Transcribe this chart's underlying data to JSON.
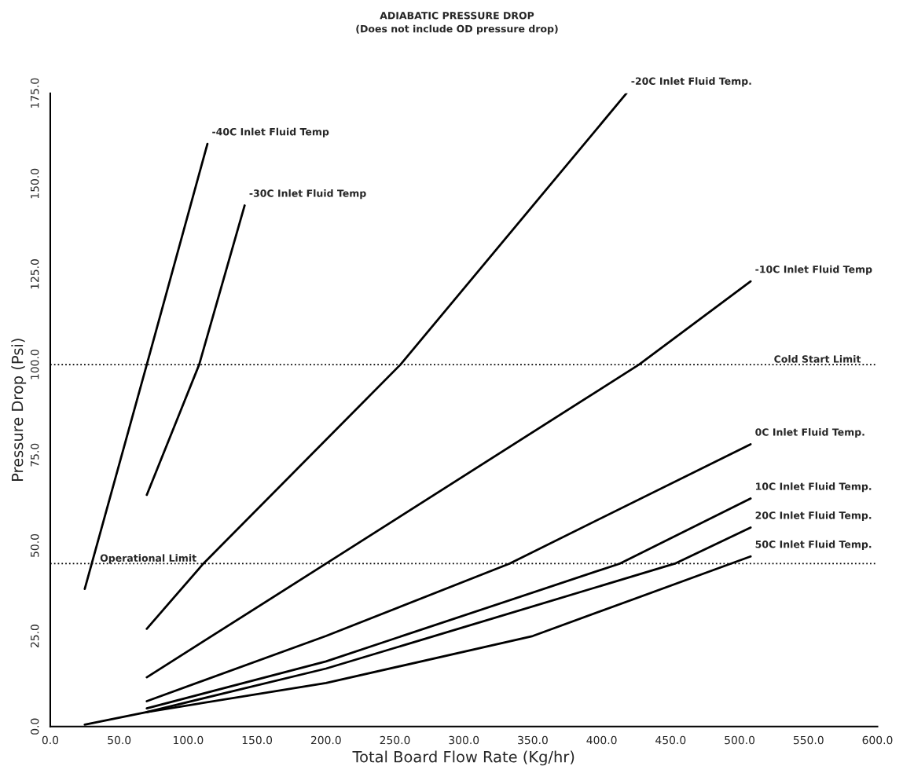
{
  "chart_data": {
    "type": "line",
    "title": "ADIABATIC PRESSURE DROP",
    "subtitle": "(Does not include OD pressure drop)",
    "xlabel": "Total Board Flow Rate (Kg/hr)",
    "ylabel": "Pressure Drop (Psi)",
    "xlim": [
      0,
      600
    ],
    "ylim": [
      0,
      175
    ],
    "xticks": [
      {
        "value": 0,
        "label": "0.0"
      },
      {
        "value": 50,
        "label": "50.0"
      },
      {
        "value": 100,
        "label": "100.0"
      },
      {
        "value": 150,
        "label": "150.0"
      },
      {
        "value": 200,
        "label": "200.0"
      },
      {
        "value": 250,
        "label": "250.0"
      },
      {
        "value": 300,
        "label": "300.0"
      },
      {
        "value": 350,
        "label": "350.0"
      },
      {
        "value": 400,
        "label": "400.0"
      },
      {
        "value": 450,
        "label": "450.0"
      },
      {
        "value": 500,
        "label": "500.0"
      },
      {
        "value": 550,
        "label": "550.0"
      },
      {
        "value": 600,
        "label": "600.0"
      }
    ],
    "yticks": [
      {
        "value": 0,
        "label": "0.0"
      },
      {
        "value": 25,
        "label": "25.0"
      },
      {
        "value": 50,
        "label": "50.0"
      },
      {
        "value": 75,
        "label": "75.0"
      },
      {
        "value": 100,
        "label": "100.0"
      },
      {
        "value": 125,
        "label": "125.0"
      },
      {
        "value": 150,
        "label": "150.0"
      },
      {
        "value": 175,
        "label": "175.0"
      }
    ],
    "grid": false,
    "legend": false,
    "marker": "none",
    "line_style": "solid",
    "series": [
      {
        "name": "-40C Inlet Fluid Temp",
        "color": "#000000",
        "x": [
          25,
          70,
          114
        ],
        "values": [
          38,
          100,
          161
        ]
      },
      {
        "name": "-30C Inlet Fluid Temp",
        "color": "#000000",
        "x": [
          70,
          108,
          141
        ],
        "values": [
          64,
          100,
          144
        ]
      },
      {
        "name": "-20C Inlet Fluid Temp.",
        "color": "#000000",
        "x": [
          70,
          111,
          254,
          418
        ],
        "values": [
          27,
          45,
          100,
          175
        ]
      },
      {
        "name": "-10C Inlet Fluid Temp",
        "color": "#000000",
        "x": [
          70,
          200,
          427,
          508
        ],
        "values": [
          13.6,
          45,
          100,
          123
        ]
      },
      {
        "name": "0C Inlet Fluid Temp.",
        "color": "#000000",
        "x": [
          70,
          200,
          333,
          508
        ],
        "values": [
          7,
          25,
          45,
          78
        ]
      },
      {
        "name": "10C Inlet Fluid Temp.",
        "color": "#000000",
        "x": [
          70,
          200,
          413,
          508
        ],
        "values": [
          5,
          18,
          45,
          63
        ]
      },
      {
        "name": "20C Inlet Fluid Temp.",
        "color": "#000000",
        "x": [
          70,
          200,
          453,
          508
        ],
        "values": [
          4,
          16,
          45,
          55
        ]
      },
      {
        "name": "50C Inlet Fluid Temp.",
        "color": "#000000",
        "x": [
          25,
          70,
          200,
          350,
          508
        ],
        "values": [
          0.5,
          4,
          12,
          25,
          47
        ]
      }
    ],
    "ref_lines": [
      {
        "axis": "y",
        "value": 100,
        "label": "Cold Start Limit",
        "color": "#000000",
        "line_style": "dotted"
      },
      {
        "axis": "y",
        "value": 45,
        "label": "Operational Limit",
        "color": "#000000",
        "line_style": "dotted"
      }
    ]
  }
}
